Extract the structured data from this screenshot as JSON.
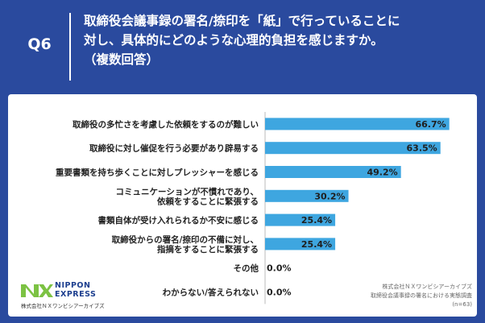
{
  "question": {
    "number": "Q6",
    "title_lines": [
      "取締役会議事録の署名/捺印を「紙」で行っていることに",
      "対し、具体的にどのような心理的負担を感じますか。",
      "（複数回答）"
    ]
  },
  "chart_data": {
    "type": "bar",
    "orientation": "horizontal",
    "categories": [
      [
        "取締役の多忙さを考慮した依頼をするのが難しい"
      ],
      [
        "取締役に対し催促を行う必要があり辟易する"
      ],
      [
        "重要書類を持ち歩くことに対しプレッシャーを感じる"
      ],
      [
        "コミュニケーションが不慣れであり、",
        "依頼をすることに緊張する"
      ],
      [
        "書類自体が受け入れられるか不安に感じる"
      ],
      [
        "取締役からの署名/捺印の不備に対し、",
        "指摘をすることに緊張する"
      ],
      [
        "その他"
      ],
      [
        "わからない/答えられない"
      ]
    ],
    "values": [
      66.7,
      63.5,
      49.2,
      30.2,
      25.4,
      25.4,
      0.0,
      0.0
    ],
    "value_labels": [
      "66.7%",
      "63.5%",
      "49.2%",
      "30.2%",
      "25.4%",
      "25.4%",
      "0.0%",
      "0.0%"
    ],
    "xlim": [
      0,
      70
    ],
    "unit": "%",
    "bar_color": "#3ea6e0"
  },
  "logo": {
    "line1": "NIPPON",
    "line2": "EXPRESS",
    "company": "株式会社ＮＸワンビシアーカイブズ"
  },
  "source": {
    "lines": [
      "株式会社ＮＸワンビシアーカイブズ",
      "取締役会議事録の署名における実態調査",
      "(n=63)"
    ]
  },
  "colors": {
    "frame": "#2a4a9e",
    "bar": "#3ea6e0",
    "logo_green": "#7cc243",
    "logo_blue": "#1d3f8f"
  }
}
